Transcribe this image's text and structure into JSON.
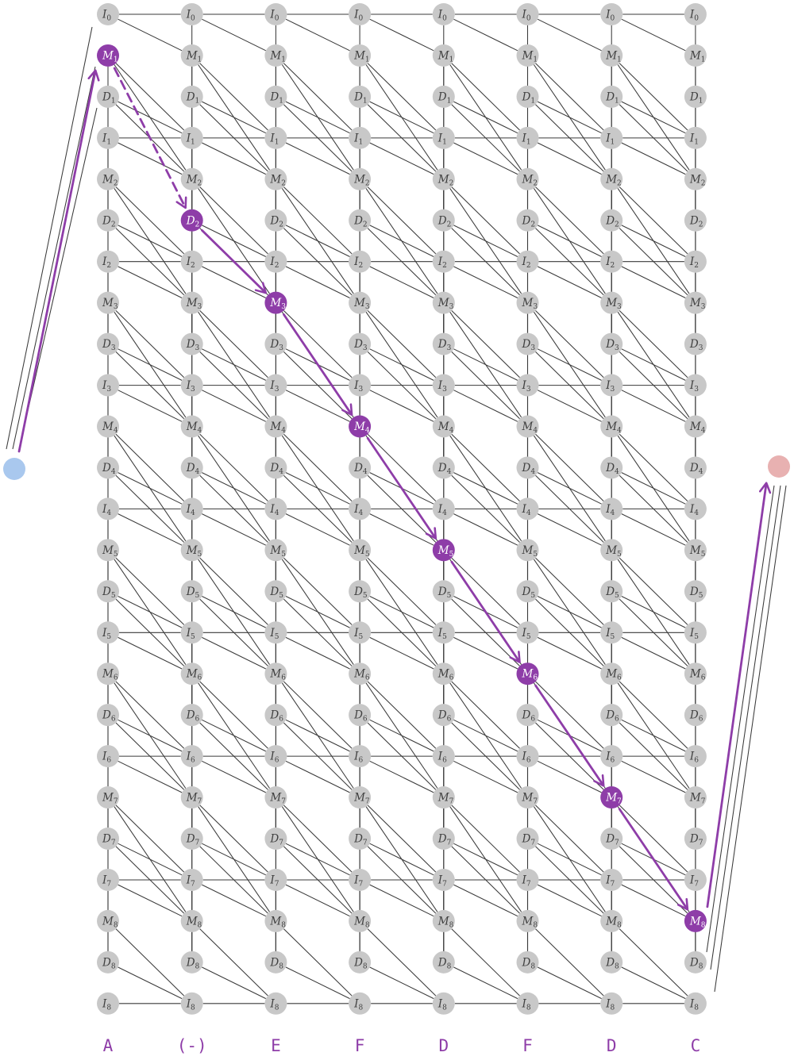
{
  "columns": [
    "A",
    "(-)",
    "E",
    "F",
    "D",
    "F",
    "D",
    "C"
  ],
  "state_rows": [
    "I0",
    "M1",
    "D1",
    "I1",
    "M2",
    "D2",
    "I2",
    "M3",
    "D3",
    "I3",
    "M4",
    "D4",
    "I4",
    "M5",
    "D5",
    "I5",
    "M6",
    "D6",
    "I6",
    "M7",
    "D7",
    "I7",
    "M8",
    "D8",
    "I8"
  ],
  "path_states": [
    {
      "column": "A",
      "state": "M1"
    },
    {
      "column": "(-)",
      "state": "D2"
    },
    {
      "column": "E",
      "state": "M3"
    },
    {
      "column": "F",
      "state": "M4"
    },
    {
      "column": "D",
      "state": "M5"
    },
    {
      "column": "F",
      "state": "M6"
    },
    {
      "column": "D",
      "state": "M7"
    },
    {
      "column": "C",
      "state": "M8"
    }
  ],
  "colors": {
    "node": "#c8c8c8",
    "path": "#8e3da8",
    "edge": "#3a3a3a",
    "start": "#a9c8ee",
    "end": "#e8b1b1"
  }
}
